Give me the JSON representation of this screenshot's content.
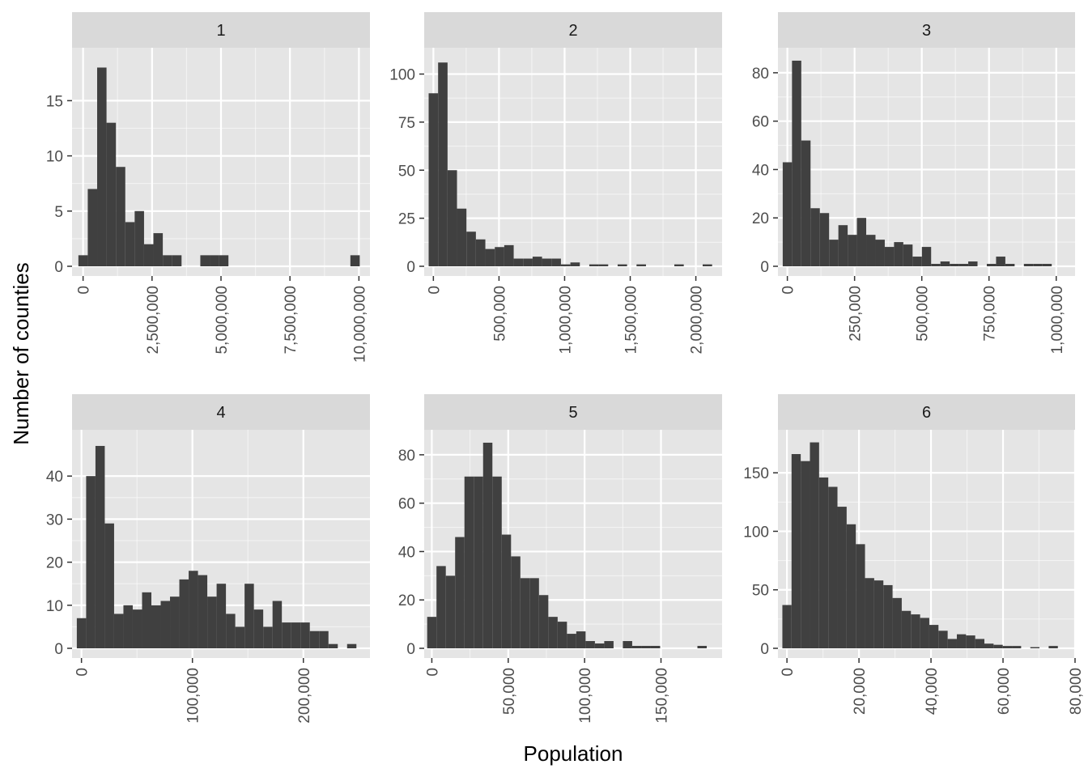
{
  "axis_titles": {
    "x": "Population",
    "y": "Number of counties"
  },
  "colors": {
    "panel_bg": "#e5e5e5",
    "strip_bg": "#d9d9d9",
    "grid": "#ffffff",
    "bar": "#404040",
    "text": "#4d4d4d",
    "title": "#000000"
  },
  "chart_data": [
    {
      "type": "bar",
      "facet": "1",
      "bin_start": 0,
      "bin_width": 340000,
      "values": [
        1,
        7,
        18,
        13,
        9,
        4,
        5,
        2,
        3,
        1,
        1,
        0,
        0,
        1,
        1,
        1,
        0,
        0,
        0,
        0,
        0,
        0,
        0,
        0,
        0,
        0,
        0,
        0,
        0,
        1
      ],
      "xlim": [
        -400000,
        10400000
      ],
      "ylim": [
        0,
        19.5
      ],
      "x_ticks": [
        0,
        2500000,
        5000000,
        7500000,
        10000000
      ],
      "x_tick_labels": [
        "0",
        "2,500,000",
        "5,000,000",
        "7,500,000",
        "10,000,000"
      ],
      "y_ticks": [
        0,
        5,
        10,
        15
      ],
      "y_tick_labels": [
        "0",
        "5",
        "10",
        "15"
      ]
    },
    {
      "type": "bar",
      "facet": "2",
      "bin_start": 0,
      "bin_width": 72000,
      "values": [
        90,
        106,
        50,
        30,
        18,
        14,
        9,
        10,
        11,
        4,
        4,
        5,
        4,
        4,
        1,
        2,
        0,
        1,
        1,
        0,
        1,
        0,
        1,
        0,
        0,
        0,
        1,
        0,
        0,
        1
      ],
      "xlim": [
        -70000,
        2200000
      ],
      "ylim": [
        0,
        112
      ],
      "x_ticks": [
        0,
        500000,
        1000000,
        1500000,
        2000000
      ],
      "x_tick_labels": [
        "0",
        "500,000",
        "1,000,000",
        "1,500,000",
        "2,000,000"
      ],
      "y_ticks": [
        0,
        25,
        50,
        75,
        100
      ],
      "y_tick_labels": [
        "0",
        "25",
        "50",
        "75",
        "100"
      ]
    },
    {
      "type": "bar",
      "facet": "3",
      "bin_start": 0,
      "bin_width": 34500,
      "values": [
        43,
        85,
        52,
        24,
        22,
        11,
        17,
        13,
        20,
        13,
        11,
        8,
        10,
        9,
        4,
        8,
        1,
        2,
        1,
        1,
        2,
        0,
        1,
        4,
        1,
        0,
        1,
        1,
        1,
        0
      ],
      "xlim": [
        -35000,
        1070000
      ],
      "ylim": [
        0,
        89
      ],
      "x_ticks": [
        0,
        250000,
        500000,
        750000,
        1000000
      ],
      "x_tick_labels": [
        "0",
        "250,000",
        "500,000",
        "750,000",
        "1,000,000"
      ],
      "y_ticks": [
        0,
        20,
        40,
        60,
        80
      ],
      "y_tick_labels": [
        "0",
        "20",
        "40",
        "60",
        "80"
      ]
    },
    {
      "type": "bar",
      "facet": "4",
      "bin_start": 0,
      "bin_width": 8400,
      "values": [
        7,
        40,
        47,
        29,
        8,
        10,
        9,
        13,
        10,
        11,
        12,
        16,
        18,
        17,
        12,
        15,
        8,
        5,
        15,
        9,
        5,
        11,
        6,
        6,
        6,
        4,
        4,
        1,
        0,
        1
      ],
      "xlim": [
        -8500,
        260000
      ],
      "ylim": [
        0,
        50
      ],
      "x_ticks": [
        0,
        100000,
        200000
      ],
      "x_tick_labels": [
        "0",
        "100,000",
        "200,000"
      ],
      "y_ticks": [
        0,
        10,
        20,
        30,
        40
      ],
      "y_tick_labels": [
        "0",
        "10",
        "20",
        "30",
        "40"
      ]
    },
    {
      "type": "bar",
      "facet": "5",
      "bin_start": 0,
      "bin_width": 6100,
      "values": [
        13,
        34,
        30,
        46,
        71,
        71,
        85,
        71,
        47,
        38,
        29,
        29,
        22,
        13,
        11,
        6,
        7,
        3,
        2,
        3,
        0,
        3,
        1,
        1,
        1,
        0,
        0,
        0,
        0,
        1
      ],
      "xlim": [
        -5000,
        190000
      ],
      "ylim": [
        0,
        89
      ],
      "x_ticks": [
        0,
        50000,
        100000,
        150000
      ],
      "x_tick_labels": [
        "0",
        "50,000",
        "100,000",
        "150,000"
      ],
      "y_ticks": [
        0,
        20,
        40,
        60,
        80
      ],
      "y_tick_labels": [
        "0",
        "20",
        "40",
        "60",
        "80"
      ]
    },
    {
      "type": "bar",
      "facet": "6",
      "bin_start": 0,
      "bin_width": 2550,
      "values": [
        37,
        166,
        160,
        176,
        146,
        138,
        121,
        106,
        89,
        60,
        58,
        54,
        43,
        32,
        29,
        26,
        20,
        15,
        8,
        12,
        11,
        8,
        4,
        3,
        2,
        2,
        0,
        1,
        0,
        2
      ],
      "xlim": [
        -2500,
        80000
      ],
      "ylim": [
        0,
        184
      ],
      "x_ticks": [
        0,
        20000,
        40000,
        60000,
        80000
      ],
      "x_tick_labels": [
        "0",
        "20,000",
        "40,000",
        "60,000",
        "80,000"
      ],
      "y_ticks": [
        0,
        50,
        100,
        150
      ],
      "y_tick_labels": [
        "0",
        "50",
        "100",
        "150"
      ]
    }
  ]
}
